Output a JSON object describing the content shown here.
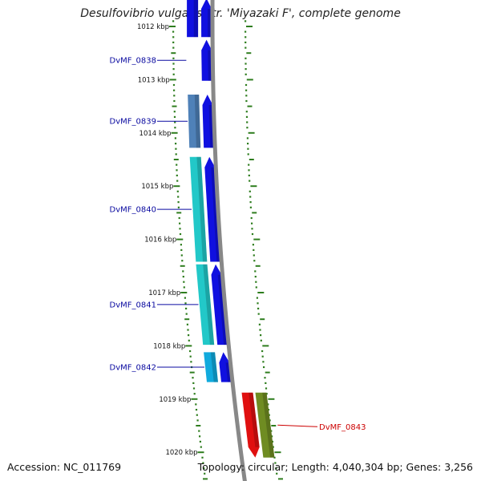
{
  "header": {
    "title": "Desulfovibrio vulgaris str. 'Miyazaki F', complete genome"
  },
  "footer": {
    "accession": "Accession: NC_011769",
    "topology": "Topology: circular; Length: 4,040,304 bp; Genes: 3,256"
  },
  "colors": {
    "backbone": "#888888",
    "tick": "#2e7d1e",
    "forward_cds": "#1010e0",
    "cog_blue_gray": "#4f81b8",
    "cog_cyan": "#22c8c8",
    "cog_sky": "#11aadd",
    "reverse_cds": "#e01010",
    "cog_olive": "#6f8c22",
    "label_forward": "#0a0aa0",
    "label_reverse": "#cc0000"
  },
  "scale": {
    "ticks": [
      "1012 kbp",
      "1013 kbp",
      "1014 kbp",
      "1015 kbp",
      "1016 kbp",
      "1017 kbp",
      "1018 kbp",
      "1019 kbp",
      "1020 kbp"
    ]
  },
  "features": [
    {
      "label": "",
      "strand": "+",
      "cog_color": "#1010e0",
      "start_kbp": 1011.4,
      "end_kbp": 1012.2
    },
    {
      "label": "DvMF_0838",
      "strand": "+",
      "cog_color": "",
      "start_kbp": 1012.25,
      "end_kbp": 1013.02
    },
    {
      "label": "DvMF_0839",
      "strand": "+",
      "cog_color": "#4f81b8",
      "start_kbp": 1013.28,
      "end_kbp": 1014.28
    },
    {
      "label": "DvMF_0840",
      "strand": "+",
      "cog_color": "#22c8c8",
      "start_kbp": 1014.45,
      "end_kbp": 1016.42
    },
    {
      "label": "DvMF_0841",
      "strand": "+",
      "cog_color": "#22c8c8",
      "start_kbp": 1016.47,
      "end_kbp": 1017.98
    },
    {
      "label": "DvMF_0842",
      "strand": "+",
      "cog_color": "#11aadd",
      "start_kbp": 1018.12,
      "end_kbp": 1018.68
    },
    {
      "label": "DvMF_0843",
      "strand": "-",
      "cog_color": "#6f8c22",
      "start_kbp": 1018.88,
      "end_kbp": 1020.1
    }
  ]
}
